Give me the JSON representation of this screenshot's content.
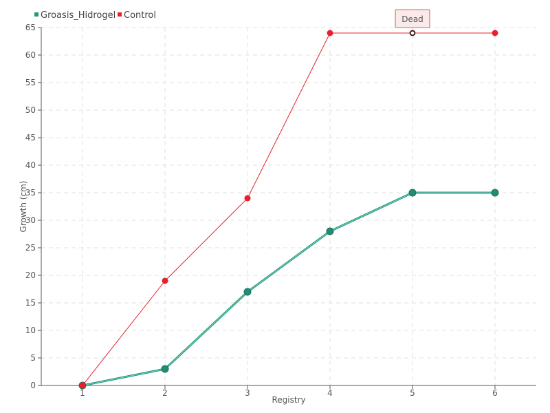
{
  "chart_data": {
    "type": "line",
    "xlabel": "Registry",
    "ylabel": "Growth (cm)",
    "x": [
      1,
      2,
      3,
      4,
      5,
      6
    ],
    "ylim": [
      0,
      65
    ],
    "ytick_step": 5,
    "grid": true,
    "legend_placement": "top-left",
    "series": [
      {
        "name": "Groasis_Hidrogel",
        "color": "#1e9a7e",
        "values": [
          0,
          3,
          17,
          28,
          35,
          35
        ]
      },
      {
        "name": "Control",
        "color": "#e8202e",
        "values": [
          0,
          19,
          34,
          64,
          64,
          64
        ]
      }
    ],
    "annotations": [
      {
        "text": "Dead",
        "series": "Control",
        "x": 5,
        "y": 64
      }
    ]
  }
}
